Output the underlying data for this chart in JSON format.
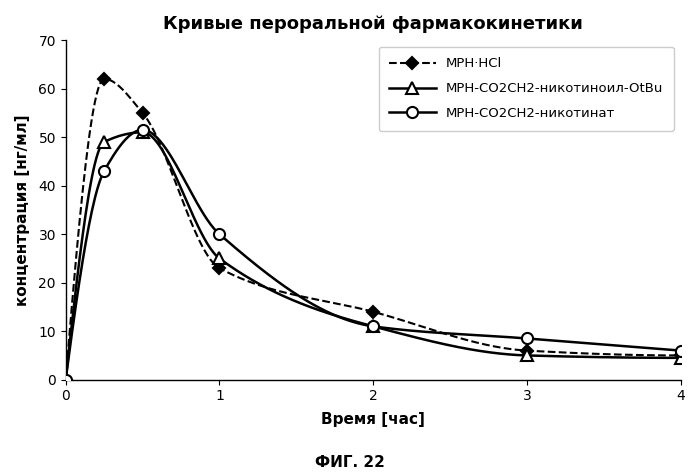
{
  "title": "Кривые пероральной фармакокинетики",
  "xlabel": "Время [час]",
  "ylabel": "концентрация [нг/мл]",
  "footnote": "ФИГ. 22",
  "ylim": [
    0,
    70
  ],
  "xlim": [
    0,
    4
  ],
  "yticks": [
    0,
    10,
    20,
    30,
    40,
    50,
    60,
    70
  ],
  "xticks": [
    0,
    1,
    2,
    3,
    4
  ],
  "series": [
    {
      "label": "MPH·HCl",
      "x": [
        0,
        0.25,
        0.5,
        1.0,
        2.0,
        3.0,
        4.0
      ],
      "y": [
        0,
        62.0,
        55.0,
        23.0,
        14.0,
        6.0,
        5.0
      ],
      "linestyle": "dashed",
      "marker": "D",
      "marker_filled": true,
      "color": "#000000",
      "linewidth": 1.5,
      "markersize": 6
    },
    {
      "label": "MPH-CO2CH2-никотиноил-OtBu",
      "x": [
        0,
        0.25,
        0.5,
        1.0,
        2.0,
        3.0,
        4.0
      ],
      "y": [
        0,
        49.0,
        51.0,
        25.0,
        11.0,
        5.0,
        4.5
      ],
      "linestyle": "solid",
      "marker": "^",
      "marker_filled": false,
      "color": "#000000",
      "linewidth": 1.8,
      "markersize": 8
    },
    {
      "label": "MPH-CO2CH2-никотинат",
      "x": [
        0,
        0.25,
        0.5,
        1.0,
        2.0,
        3.0,
        4.0
      ],
      "y": [
        0,
        43.0,
        51.5,
        30.0,
        11.0,
        8.5,
        6.0
      ],
      "linestyle": "solid",
      "marker": "o",
      "marker_filled": false,
      "color": "#000000",
      "linewidth": 1.8,
      "markersize": 8
    }
  ],
  "legend_loc": "upper right",
  "background_color": "#ffffff",
  "title_fontsize": 13,
  "label_fontsize": 11,
  "tick_fontsize": 10,
  "footnote_fontsize": 11
}
